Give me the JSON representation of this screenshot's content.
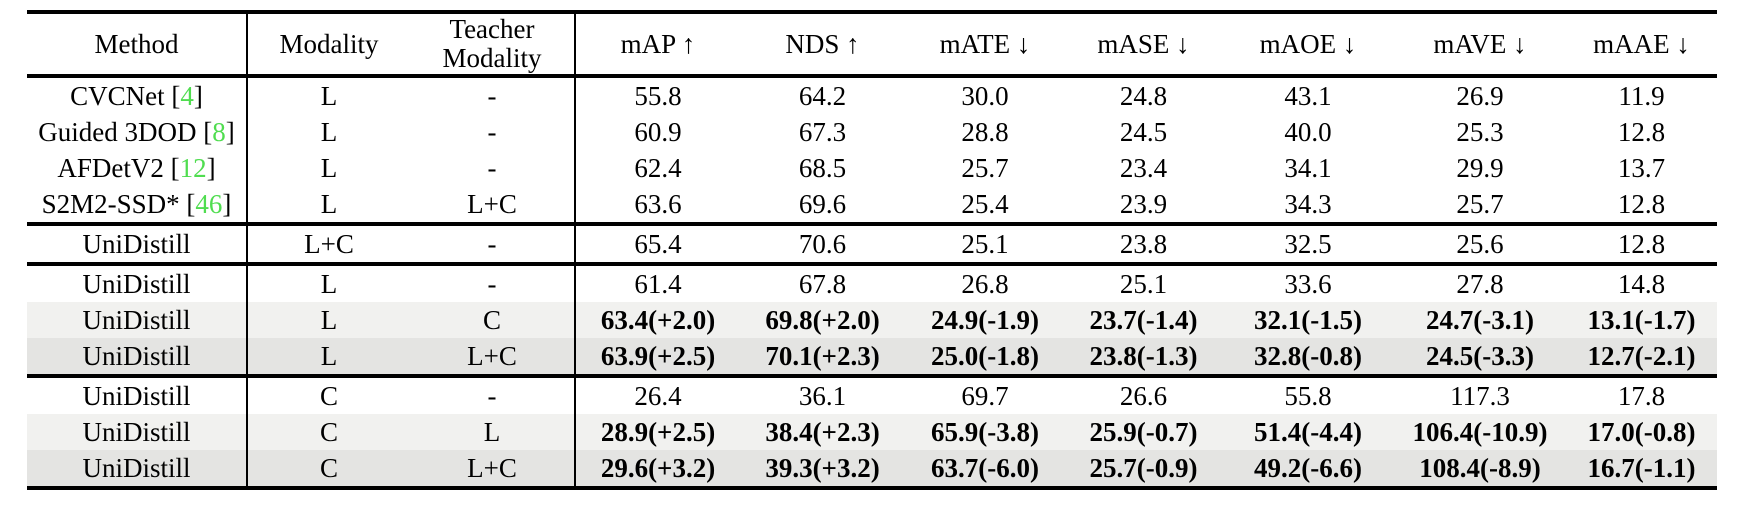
{
  "table": {
    "columns": [
      "Method",
      "Modality",
      "Teacher Modality",
      "mAP ↑",
      "NDS ↑",
      "mATE ↓",
      "mASE ↓",
      "mAOE ↓",
      "mAVE ↓",
      "mAAE ↓"
    ],
    "rows": [
      {
        "method": "CVCNet",
        "cite": "4",
        "modality": "L",
        "teacher": "-",
        "values": [
          "55.8",
          "64.2",
          "30.0",
          "24.8",
          "43.1",
          "26.9",
          "11.9"
        ],
        "bold": false,
        "bg": "none",
        "section_end": false
      },
      {
        "method": "Guided 3DOD",
        "cite": "8",
        "modality": "L",
        "teacher": "-",
        "values": [
          "60.9",
          "67.3",
          "28.8",
          "24.5",
          "40.0",
          "25.3",
          "12.8"
        ],
        "bold": false,
        "bg": "none",
        "section_end": false
      },
      {
        "method": "AFDetV2",
        "cite": "12",
        "modality": "L",
        "teacher": "-",
        "values": [
          "62.4",
          "68.5",
          "25.7",
          "23.4",
          "34.1",
          "29.9",
          "13.7"
        ],
        "bold": false,
        "bg": "none",
        "section_end": false
      },
      {
        "method": "S2M2-SSD*",
        "cite": "46",
        "modality": "L",
        "teacher": "L+C",
        "values": [
          "63.6",
          "69.6",
          "25.4",
          "23.9",
          "34.3",
          "25.7",
          "12.8"
        ],
        "bold": false,
        "bg": "none",
        "section_end": true
      },
      {
        "method": "UniDistill",
        "cite": null,
        "modality": "L+C",
        "teacher": "-",
        "values": [
          "65.4",
          "70.6",
          "25.1",
          "23.8",
          "32.5",
          "25.6",
          "12.8"
        ],
        "bold": false,
        "bg": "none",
        "section_end": true
      },
      {
        "method": "UniDistill",
        "cite": null,
        "modality": "L",
        "teacher": "-",
        "values": [
          "61.4",
          "67.8",
          "26.8",
          "25.1",
          "33.6",
          "27.8",
          "14.8"
        ],
        "bold": false,
        "bg": "none",
        "section_end": false
      },
      {
        "method": "UniDistill",
        "cite": null,
        "modality": "L",
        "teacher": "C",
        "values": [
          "63.4(+2.0)",
          "69.8(+2.0)",
          "24.9(-1.9)",
          "23.7(-1.4)",
          "32.1(-1.5)",
          "24.7(-3.1)",
          "13.1(-1.7)"
        ],
        "bold": true,
        "bg": "light",
        "section_end": false
      },
      {
        "method": "UniDistill",
        "cite": null,
        "modality": "L",
        "teacher": "L+C",
        "values": [
          "63.9(+2.5)",
          "70.1(+2.3)",
          "25.0(-1.8)",
          "23.8(-1.3)",
          "32.8(-0.8)",
          "24.5(-3.3)",
          "12.7(-2.1)"
        ],
        "bold": true,
        "bg": "dark",
        "section_end": true
      },
      {
        "method": "UniDistill",
        "cite": null,
        "modality": "C",
        "teacher": "-",
        "values": [
          "26.4",
          "36.1",
          "69.7",
          "26.6",
          "55.8",
          "117.3",
          "17.8"
        ],
        "bold": false,
        "bg": "none",
        "section_end": false
      },
      {
        "method": "UniDistill",
        "cite": null,
        "modality": "C",
        "teacher": "L",
        "values": [
          "28.9(+2.5)",
          "38.4(+2.3)",
          "65.9(-3.8)",
          "25.9(-0.7)",
          "51.4(-4.4)",
          "106.4(-10.9)",
          "17.0(-0.8)"
        ],
        "bold": true,
        "bg": "light",
        "section_end": false
      },
      {
        "method": "UniDistill",
        "cite": null,
        "modality": "C",
        "teacher": "L+C",
        "values": [
          "29.6(+3.2)",
          "39.3(+3.2)",
          "63.7(-6.0)",
          "25.7(-0.9)",
          "49.2(-6.6)",
          "108.4(-8.9)",
          "16.7(-1.1)"
        ],
        "bold": true,
        "bg": "dark",
        "section_end": false
      }
    ],
    "colors": {
      "citation_green": "#50dd50",
      "row_light": "#f1f1ef",
      "row_dark": "#e4e4e2",
      "border_black": "#000000"
    }
  }
}
